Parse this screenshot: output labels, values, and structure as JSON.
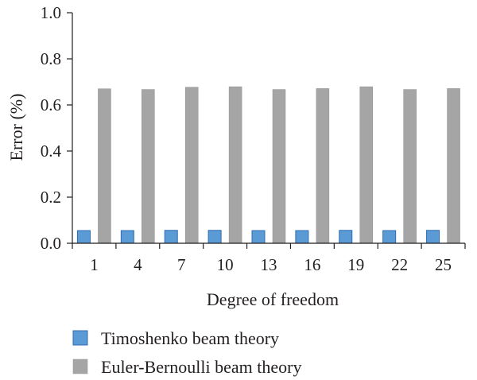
{
  "chart_data": {
    "type": "bar",
    "categories": [
      "1",
      "4",
      "7",
      "10",
      "13",
      "16",
      "19",
      "22",
      "25"
    ],
    "series": [
      {
        "name": "Timoshenko beam theory",
        "color": "#5b9bd5",
        "values": [
          0.055,
          0.055,
          0.056,
          0.056,
          0.055,
          0.055,
          0.056,
          0.055,
          0.056
        ]
      },
      {
        "name": "Euler-Bernoulli beam theory",
        "color": "#a5a5a5",
        "values": [
          0.67,
          0.667,
          0.677,
          0.679,
          0.667,
          0.671,
          0.679,
          0.667,
          0.671
        ]
      }
    ],
    "xlabel": "Degree of freedom",
    "ylabel": "Error (%)",
    "ylim": [
      0,
      1.0
    ],
    "yticks": [
      "0.0",
      "0.2",
      "0.4",
      "0.6",
      "0.8",
      "1.0"
    ],
    "grid": false,
    "legend_position": "bottom"
  }
}
